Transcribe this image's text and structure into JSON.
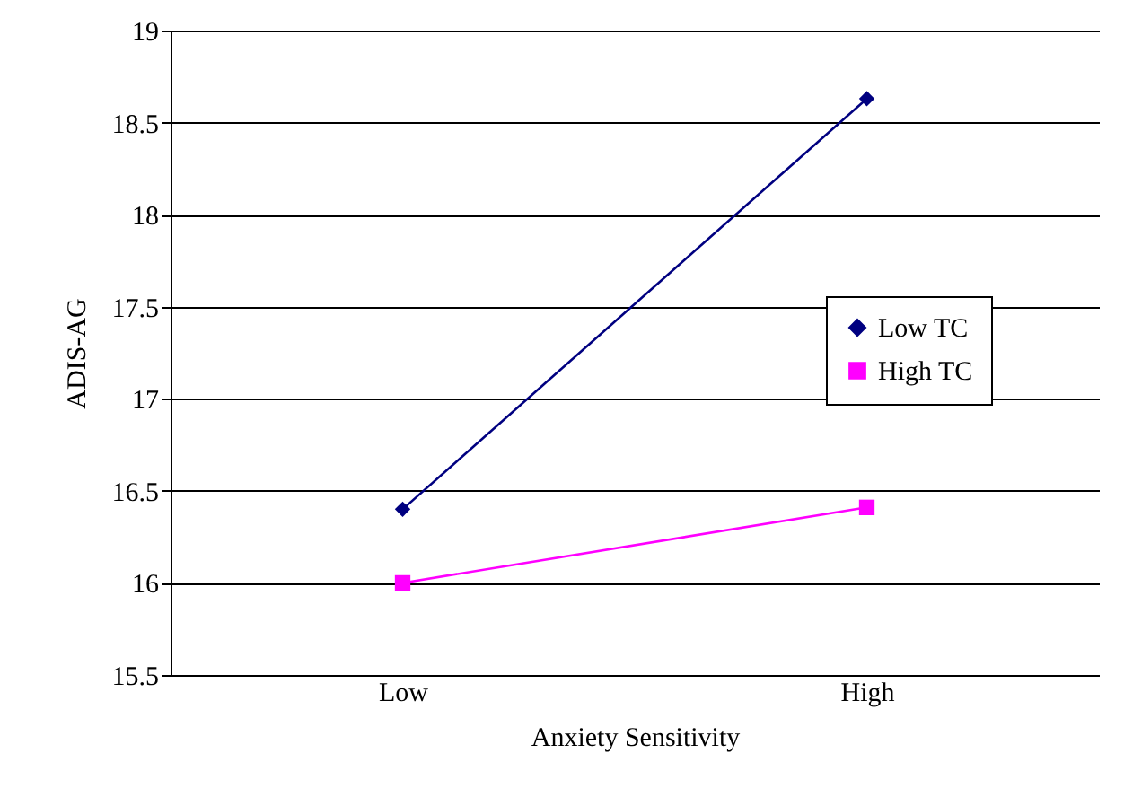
{
  "chart_data": {
    "type": "line",
    "xlabel": "Anxiety Sensitivity",
    "ylabel": "ADIS-AG",
    "categories": [
      "Low",
      "High"
    ],
    "series": [
      {
        "name": "Low TC",
        "color": "#000080",
        "values": [
          16.4,
          18.63
        ],
        "marker": "diamond"
      },
      {
        "name": "High TC",
        "color": "#ff00ff",
        "values": [
          16.0,
          16.41
        ],
        "marker": "square"
      }
    ],
    "ylim": [
      15.5,
      19
    ],
    "yticks": [
      15.5,
      16,
      16.5,
      17,
      17.5,
      18,
      18.5,
      19
    ],
    "grid": "y",
    "legend": "right"
  }
}
